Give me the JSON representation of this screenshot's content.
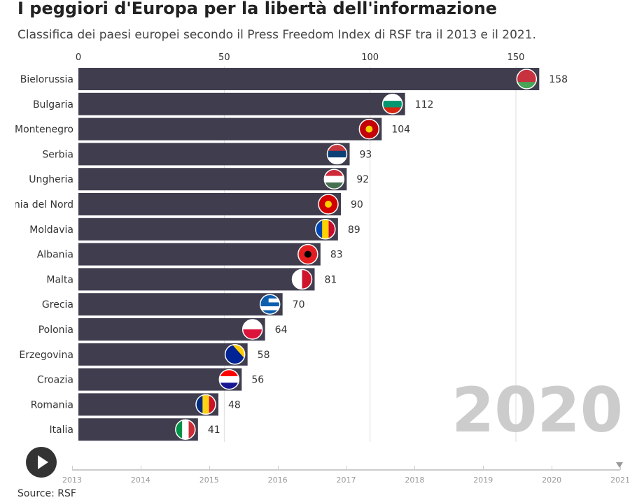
{
  "title": "I peggiori d'Europa per la libertà dell'informazione",
  "subtitle": "Classifica dei paesi europei secondo il Press Freedom Index di RSF tra il 2013 e il 2021.",
  "source": "Source: RSF",
  "current_year": "2020",
  "timeline_years": [
    "2013",
    "2014",
    "2015",
    "2016",
    "2017",
    "2018",
    "2019",
    "2020",
    "2021"
  ],
  "colors": {
    "bar": "#3f3d4e",
    "grid": "#ddd",
    "year": "#cccccc"
  },
  "chart_data": {
    "type": "bar",
    "orientation": "horizontal",
    "categories": [
      "Bielorussia",
      "Bulgaria",
      "Montenegro",
      "Serbia",
      "Ungheria",
      "Macedonia del Nord",
      "Moldavia",
      "Albania",
      "Malta",
      "Grecia",
      "Polonia",
      "Bosnia Erzegovina",
      "Croazia",
      "Romania",
      "Italia"
    ],
    "values": [
      158,
      112,
      104,
      93,
      92,
      90,
      89,
      83,
      81,
      70,
      64,
      58,
      56,
      48,
      41
    ],
    "xticks": [
      0,
      50,
      100,
      150
    ],
    "xlim": [
      0,
      160
    ],
    "grid": true,
    "flags": [
      "belarus",
      "bulgaria",
      "montenegro",
      "serbia",
      "hungary",
      "north-macedonia",
      "moldova",
      "albania",
      "malta",
      "greece",
      "poland",
      "bosnia",
      "croatia",
      "romania",
      "italy"
    ]
  }
}
